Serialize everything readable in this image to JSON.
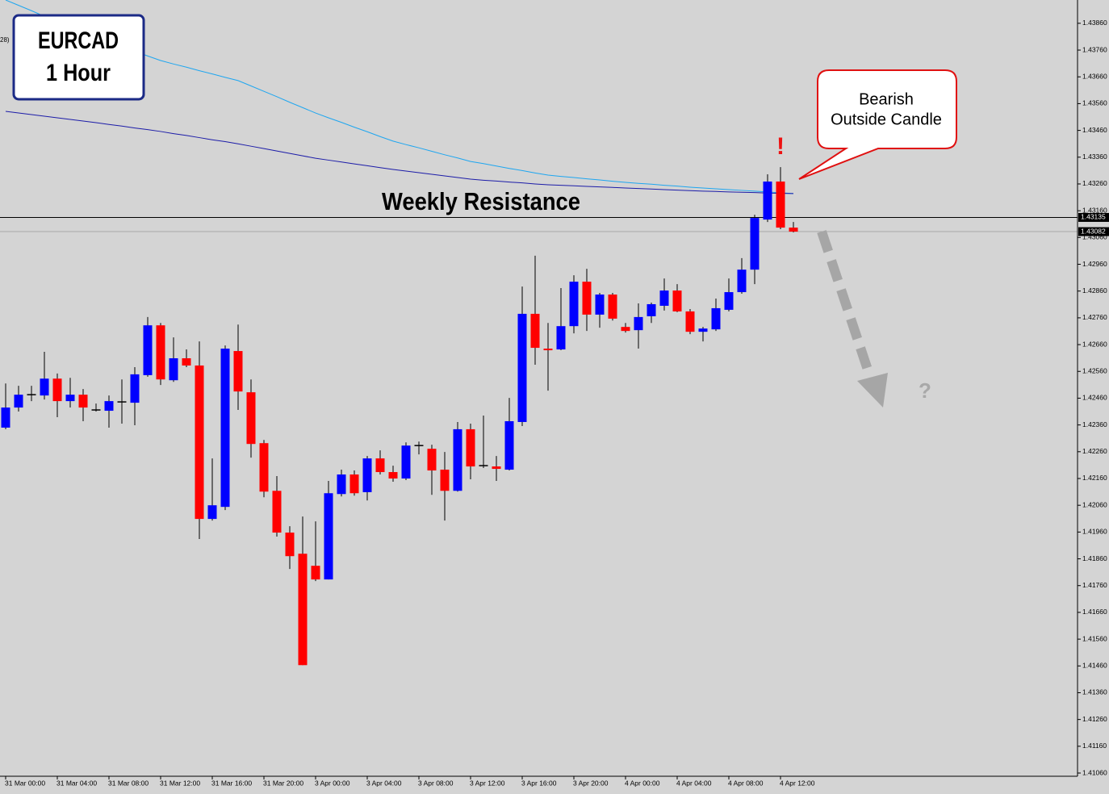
{
  "chart_data": {
    "type": "candlestick",
    "title": "EURCAD",
    "subtitle": "1 Hour",
    "categories": [
      "31 Mar 00:00",
      null,
      null,
      null,
      "31 Mar 04:00",
      null,
      null,
      null,
      "31 Mar 08:00",
      null,
      null,
      null,
      "31 Mar 12:00",
      null,
      null,
      null,
      "31 Mar 16:00",
      null,
      null,
      null,
      "31 Mar 20:00",
      null,
      null,
      null,
      "3 Apr 00:00",
      null,
      null,
      null,
      "3 Apr 04:00",
      null,
      null,
      null,
      "3 Apr 08:00",
      null,
      null,
      null,
      "3 Apr 12:00",
      null,
      null,
      null,
      "3 Apr 16:00",
      null,
      null,
      null,
      "3 Apr 20:00",
      null,
      null,
      null,
      "4 Apr 00:00",
      null,
      null,
      null,
      "4 Apr 04:00",
      null,
      null,
      null,
      "4 Apr 08:00",
      null,
      null,
      null,
      "4 Apr 12:00",
      null
    ],
    "open": [
      1.4235,
      1.42425,
      1.42473,
      1.4247,
      1.42533,
      1.42449,
      1.42473,
      1.42416,
      1.42413,
      1.42446,
      1.42443,
      1.42546,
      1.42732,
      1.42527,
      1.42609,
      1.42582,
      1.42009,
      1.42054,
      1.42636,
      1.42482,
      1.42292,
      1.42114,
      1.41958,
      1.41879,
      1.41834,
      1.41783,
      1.42102,
      1.42175,
      1.42109,
      1.42235,
      1.42184,
      1.4216,
      1.42283,
      1.42271,
      1.42193,
      1.42114,
      1.42344,
      1.42208,
      1.42205,
      1.42193,
      1.42371,
      1.42775,
      1.42645,
      1.42642,
      1.42729,
      1.42895,
      1.42772,
      1.42847,
      1.42726,
      1.42714,
      1.42766,
      1.42805,
      1.42862,
      1.42784,
      1.42708,
      1.42717,
      1.4279,
      1.42856,
      1.4294,
      1.43127,
      1.43269,
      1.43097
    ],
    "high": [
      1.42515,
      1.42506,
      1.42506,
      1.42633,
      1.42552,
      1.42536,
      1.42494,
      1.4244,
      1.4247,
      1.4253,
      1.42576,
      1.42763,
      1.42741,
      1.42687,
      1.42642,
      1.42672,
      1.42235,
      1.42657,
      1.42735,
      1.4253,
      1.42304,
      1.42169,
      1.41982,
      1.42018,
      1.42,
      1.42151,
      1.42193,
      1.4219,
      1.42244,
      1.42265,
      1.42208,
      1.42295,
      1.42298,
      1.42286,
      1.42259,
      1.42371,
      1.42365,
      1.42395,
      1.42244,
      1.42461,
      1.42877,
      1.42992,
      1.42741,
      1.42871,
      1.42919,
      1.42943,
      1.42853,
      1.42853,
      1.42741,
      1.42814,
      1.42817,
      1.42907,
      1.42886,
      1.42793,
      1.42726,
      1.42832,
      1.42907,
      1.42983,
      1.43145,
      1.43296,
      1.43323,
      1.43118
    ],
    "low": [
      1.42344,
      1.4241,
      1.42449,
      1.42455,
      1.42389,
      1.42425,
      1.42374,
      1.4241,
      1.4235,
      1.42365,
      1.42359,
      1.4254,
      1.42509,
      1.42521,
      1.42576,
      1.41934,
      1.42003,
      1.42042,
      1.42416,
      1.42238,
      1.4209,
      1.41943,
      1.41822,
      1.41463,
      1.41777,
      1.41783,
      1.42093,
      1.42096,
      1.42078,
      1.42175,
      1.42148,
      1.42154,
      1.4225,
      1.42099,
      1.42003,
      1.42111,
      1.42157,
      1.42199,
      1.42151,
      1.4219,
      1.42356,
      1.42585,
      1.42488,
      1.42639,
      1.42702,
      1.42711,
      1.42723,
      1.4275,
      1.42705,
      1.42645,
      1.42741,
      1.42787,
      1.42781,
      1.42699,
      1.42672,
      1.42711,
      1.42784,
      1.4285,
      1.42886,
      1.43118,
      1.43091,
      1.43079
    ],
    "close": [
      1.42425,
      1.42473,
      1.42473,
      1.42533,
      1.42449,
      1.42473,
      1.42425,
      1.42416,
      1.42449,
      1.42446,
      1.42549,
      1.42732,
      1.4253,
      1.42609,
      1.42582,
      1.42009,
      1.4206,
      1.42645,
      1.42485,
      1.42289,
      1.42111,
      1.41958,
      1.4187,
      1.41463,
      1.41783,
      1.42105,
      1.42175,
      1.42105,
      1.42235,
      1.42184,
      1.4216,
      1.42283,
      1.42283,
      1.4219,
      1.42114,
      1.42344,
      1.42205,
      1.42208,
      1.42196,
      1.42374,
      1.42775,
      1.42648,
      1.42639,
      1.42729,
      1.42895,
      1.42772,
      1.42847,
      1.42757,
      1.42711,
      1.42763,
      1.42811,
      1.42862,
      1.42784,
      1.42708,
      1.4272,
      1.42796,
      1.42856,
      1.4294,
      1.43133,
      1.43269,
      1.43097,
      1.43082
    ],
    "up_color": "#0000ff",
    "down_color": "#ff0000",
    "moving_averages": [
      {
        "color": "#1ea6f0",
        "values": [
          1.43947,
          1.43927,
          1.43907,
          1.43886,
          1.43866,
          1.43846,
          1.43826,
          1.43808,
          1.43791,
          1.43773,
          1.43756,
          1.43738,
          1.43721,
          1.43708,
          1.43696,
          1.43683,
          1.43671,
          1.43658,
          1.43646,
          1.43626,
          1.43606,
          1.43586,
          1.43565,
          1.43545,
          1.43525,
          1.43507,
          1.4349,
          1.43472,
          1.43455,
          1.43437,
          1.4342,
          1.43407,
          1.43395,
          1.43382,
          1.43369,
          1.43357,
          1.43344,
          1.43336,
          1.43327,
          1.43318,
          1.4331,
          1.43301,
          1.43293,
          1.43288,
          1.43284,
          1.43279,
          1.43275,
          1.4327,
          1.43266,
          1.43262,
          1.43259,
          1.43255,
          1.43252,
          1.43248,
          1.43245,
          1.43242,
          1.43239,
          1.43236,
          1.43233,
          1.4323,
          1.43227,
          1.43224
        ]
      },
      {
        "color": "#1c1ca8",
        "values": [
          1.43531,
          1.43525,
          1.43519,
          1.43513,
          1.43507,
          1.43501,
          1.43495,
          1.43489,
          1.43482,
          1.43476,
          1.43469,
          1.43463,
          1.43456,
          1.43448,
          1.43441,
          1.43433,
          1.43425,
          1.43418,
          1.4341,
          1.43401,
          1.43392,
          1.43383,
          1.43374,
          1.43365,
          1.43356,
          1.43349,
          1.43342,
          1.43335,
          1.43328,
          1.43321,
          1.43314,
          1.43308,
          1.43302,
          1.43296,
          1.4329,
          1.43284,
          1.43278,
          1.43274,
          1.43271,
          1.43267,
          1.43264,
          1.4326,
          1.43257,
          1.43255,
          1.43253,
          1.43251,
          1.43249,
          1.43247,
          1.43245,
          1.43243,
          1.43241,
          1.43239,
          1.43237,
          1.43235,
          1.43233,
          1.43232,
          1.4323,
          1.43229,
          1.43228,
          1.43226,
          1.43225,
          1.43224
        ]
      }
    ],
    "hlines": [
      {
        "value": 1.43135,
        "color": "#000000"
      },
      {
        "value": 1.43082,
        "color": "#a8a8a8"
      }
    ],
    "ylim": [
      1.41048,
      1.43947
    ],
    "yticks": [
      {
        "value": 1.4106,
        "label": "1.41060"
      },
      {
        "value": 1.4116,
        "label": "1.41160"
      },
      {
        "value": 1.4126,
        "label": "1.41260"
      },
      {
        "value": 1.4136,
        "label": "1.41360"
      },
      {
        "value": 1.4146,
        "label": "1.41460"
      },
      {
        "value": 1.4156,
        "label": "1.41560"
      },
      {
        "value": 1.4166,
        "label": "1.41660"
      },
      {
        "value": 1.4176,
        "label": "1.41760"
      },
      {
        "value": 1.4186,
        "label": "1.41860"
      },
      {
        "value": 1.4196,
        "label": "1.41960"
      },
      {
        "value": 1.4206,
        "label": "1.42060"
      },
      {
        "value": 1.4216,
        "label": "1.42160"
      },
      {
        "value": 1.4226,
        "label": "1.42260"
      },
      {
        "value": 1.4236,
        "label": "1.42360"
      },
      {
        "value": 1.4246,
        "label": "1.42460"
      },
      {
        "value": 1.4256,
        "label": "1.42560"
      },
      {
        "value": 1.4266,
        "label": "1.42660"
      },
      {
        "value": 1.4276,
        "label": "1.42760"
      },
      {
        "value": 1.4286,
        "label": "1.42860"
      },
      {
        "value": 1.4296,
        "label": "1.42960"
      },
      {
        "value": 1.4306,
        "label": "1.43060"
      },
      {
        "value": 1.4316,
        "label": "1.43160"
      },
      {
        "value": 1.4326,
        "label": "1.43260"
      },
      {
        "value": 1.4336,
        "label": "1.43360"
      },
      {
        "value": 1.4346,
        "label": "1.43460"
      },
      {
        "value": 1.4356,
        "label": "1.43560"
      },
      {
        "value": 1.4366,
        "label": "1.43660"
      },
      {
        "value": 1.4376,
        "label": "1.43760"
      },
      {
        "value": 1.4386,
        "label": "1.43860"
      }
    ],
    "annotations": {
      "resistance": "Weekly Resistance",
      "callout": [
        "Bearish",
        "Outside Candle"
      ],
      "exclaim": "!",
      "question": "?",
      "indicator": "28)"
    }
  }
}
